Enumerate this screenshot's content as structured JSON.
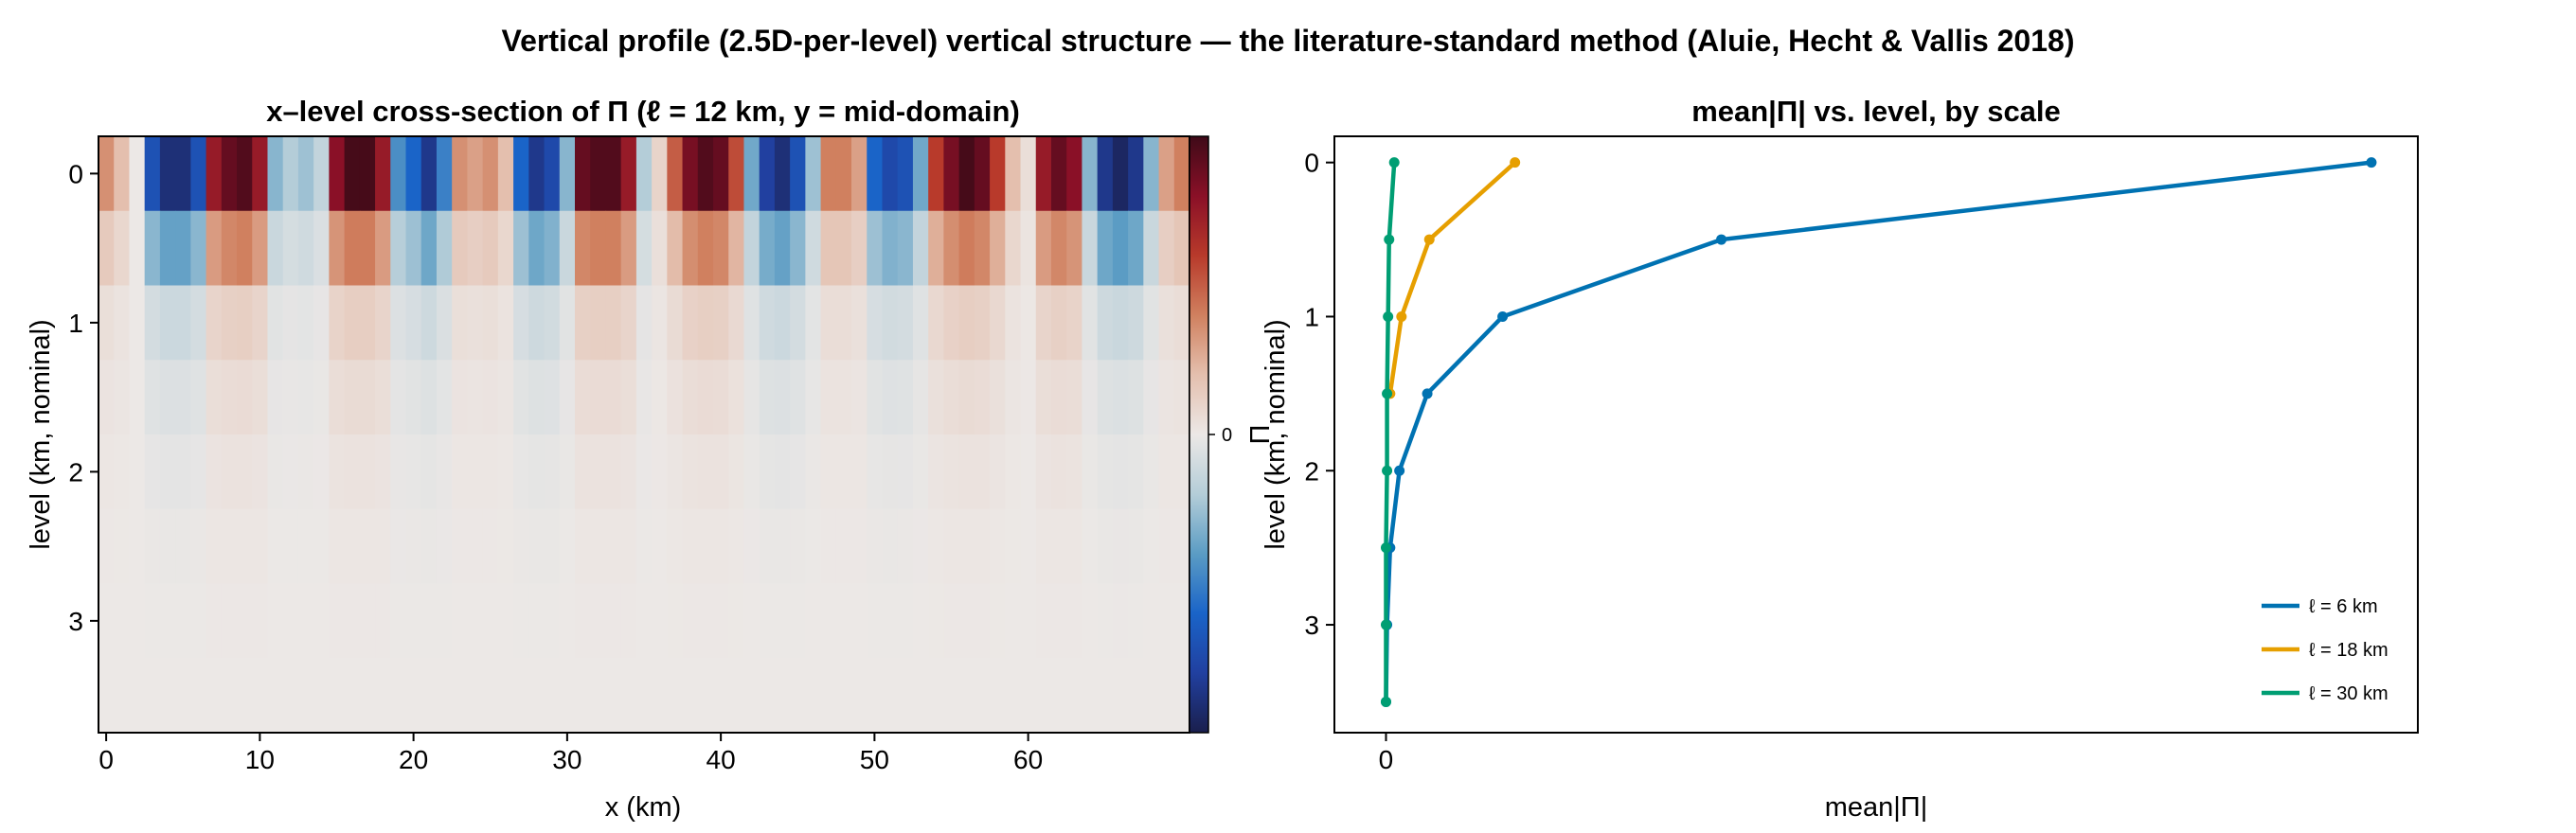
{
  "figure": {
    "title": "Vertical profile (2.5D-per-level) vertical structure — the literature-standard method (Aluie, Hecht & Vallis 2018)"
  },
  "chart_data": [
    {
      "type": "heatmap",
      "title": "x–level cross-section of Π  (ℓ = 12 km, y = mid-domain)",
      "xlabel": "x (km)",
      "ylabel": "level (km, nominal)",
      "xlim": [
        -0.5,
        70.5
      ],
      "ylim": [
        3.75,
        -0.25
      ],
      "x_ticks": [
        0,
        10,
        20,
        30,
        40,
        50,
        60
      ],
      "x_tick_labels": [
        "0",
        "10",
        "20",
        "30",
        "40",
        "50",
        "60"
      ],
      "y_ticks": [
        0,
        1,
        2,
        3
      ],
      "y_tick_labels": [
        "0",
        "1",
        "2",
        "3"
      ],
      "colorbar": {
        "tick_values": [
          0
        ],
        "tick_labels": [
          "0"
        ],
        "range": [
          -1,
          1
        ]
      },
      "colormap": [
        "#1a1f4d",
        "#2140a0",
        "#1a64c8",
        "#5b9cc4",
        "#b4cdd8",
        "#ece8e6",
        "#e4bfae",
        "#d0805f",
        "#b83a2b",
        "#8a1027",
        "#3f0a18"
      ],
      "levels": [
        0,
        0.5,
        1,
        1.5,
        2,
        2.5,
        3,
        3.5
      ],
      "level_scale": [
        1.0,
        0.42,
        0.13,
        0.065,
        0.03,
        0.012,
        0.004,
        0.001
      ],
      "x": [
        0,
        1,
        2,
        3,
        4,
        5,
        6,
        7,
        8,
        9,
        10,
        11,
        12,
        13,
        14,
        15,
        16,
        17,
        18,
        19,
        20,
        21,
        22,
        23,
        24,
        25,
        26,
        27,
        28,
        29,
        30,
        31,
        32,
        33,
        34,
        35,
        36,
        37,
        38,
        39,
        40,
        41,
        42,
        43,
        44,
        45,
        46,
        47,
        48,
        49,
        50,
        51,
        52,
        53,
        54,
        55,
        56,
        57,
        58,
        59,
        60,
        61,
        62,
        63,
        64,
        65,
        66,
        67,
        68,
        69,
        70
      ],
      "surface_values": [
        0.35,
        0.2,
        0.0,
        -0.7,
        -0.9,
        -0.9,
        -0.7,
        0.75,
        0.9,
        0.95,
        0.75,
        -0.3,
        -0.2,
        -0.25,
        -0.15,
        0.8,
        0.98,
        0.98,
        0.75,
        -0.45,
        -0.6,
        -0.85,
        -0.5,
        0.35,
        0.3,
        0.35,
        0.2,
        -0.6,
        -0.85,
        -0.75,
        -0.3,
        0.9,
        0.95,
        0.95,
        0.75,
        -0.2,
        0.1,
        0.5,
        0.85,
        0.95,
        0.9,
        0.55,
        -0.35,
        -0.8,
        -0.9,
        -0.7,
        -0.25,
        0.4,
        0.4,
        0.3,
        -0.6,
        -0.75,
        -0.7,
        -0.35,
        0.6,
        0.85,
        0.98,
        0.9,
        0.6,
        0.2,
        0.05,
        0.75,
        0.9,
        0.8,
        -0.3,
        -0.85,
        -0.95,
        -0.85,
        -0.3,
        0.3,
        0.4
      ]
    },
    {
      "type": "line",
      "title": "mean|Π| vs. level, by scale",
      "xlabel": "mean|Π|",
      "ylabel": "level (km, nominal)",
      "y_axis_overlay_char": "Π",
      "xlim": [
        -0.05,
        1.0
      ],
      "ylim": [
        3.7,
        -0.17
      ],
      "x_ticks": [
        0
      ],
      "x_tick_labels": [
        "0"
      ],
      "y_ticks": [
        0,
        1,
        2,
        3
      ],
      "y_tick_labels": [
        "0",
        "1",
        "2",
        "3"
      ],
      "legend_position": "bottom-right",
      "series": [
        {
          "name": "ℓ = 6 km",
          "color": "#0072B2",
          "x": [
            0.955,
            0.325,
            0.113,
            0.04,
            0.013,
            0.004,
            0.001,
            0.0
          ],
          "y": [
            0,
            0.5,
            1,
            1.5,
            2,
            2.5,
            3,
            3.5
          ]
        },
        {
          "name": "ℓ = 18 km",
          "color": "#E69F00",
          "x": [
            0.125,
            0.042,
            0.015,
            0.004
          ],
          "y": [
            0,
            0.5,
            1,
            1.5
          ]
        },
        {
          "name": "ℓ = 30 km",
          "color": "#009E73",
          "x": [
            0.008,
            0.003,
            0.002,
            0.001,
            0.001,
            0.0,
            0.0,
            0.0
          ],
          "y": [
            0,
            0.5,
            1,
            1.5,
            2,
            2.5,
            3,
            3.5
          ]
        }
      ]
    }
  ]
}
